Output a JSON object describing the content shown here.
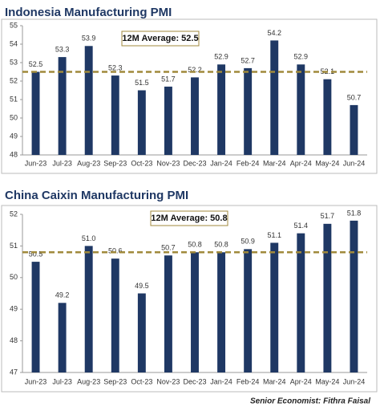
{
  "chart_data": [
    {
      "type": "bar",
      "title": "Indonesia Manufacturing PMI",
      "categories": [
        "Jun-23",
        "Jul-23",
        "Aug-23",
        "Sep-23",
        "Oct-23",
        "Nov-23",
        "Dec-23",
        "Jan-24",
        "Feb-24",
        "Mar-24",
        "Apr-24",
        "May-24",
        "Jun-24"
      ],
      "values": [
        52.5,
        53.3,
        53.9,
        52.3,
        51.5,
        51.7,
        52.2,
        52.9,
        52.7,
        54.2,
        52.9,
        52.1,
        50.7
      ],
      "color": "#1f3864",
      "average": 52.5,
      "average_label": "12M Average: 52.5",
      "average_color": "#a08a3c",
      "ylim": [
        48,
        55
      ],
      "yticks": [
        48,
        49,
        50,
        51,
        52,
        53,
        54,
        55
      ]
    },
    {
      "type": "bar",
      "title": "China Caixin Manufacturing PMI",
      "categories": [
        "Jun-23",
        "Jul-23",
        "Aug-23",
        "Sep-23",
        "Oct-23",
        "Nov-23",
        "Dec-23",
        "Jan-24",
        "Feb-24",
        "Mar-24",
        "Apr-24",
        "May-24",
        "Jun-24"
      ],
      "values": [
        50.5,
        49.2,
        51.0,
        50.6,
        49.5,
        50.7,
        50.8,
        50.8,
        50.9,
        51.1,
        51.4,
        51.7,
        51.8
      ],
      "value_labels": [
        "50.5",
        "49.2",
        "51.0",
        "50.6",
        "49.5",
        "50.7",
        "50.8",
        "50.8",
        "50.9",
        "51.1",
        "51.4",
        "51.7",
        "51.8"
      ],
      "color": "#1f3864",
      "average": 50.8,
      "average_label": "12M Average: 50.8",
      "average_color": "#a08a3c",
      "ylim": [
        47,
        52
      ],
      "yticks": [
        47,
        48,
        49,
        50,
        51,
        52
      ]
    }
  ],
  "footer": "Senior Economist: Fithra Faisal"
}
